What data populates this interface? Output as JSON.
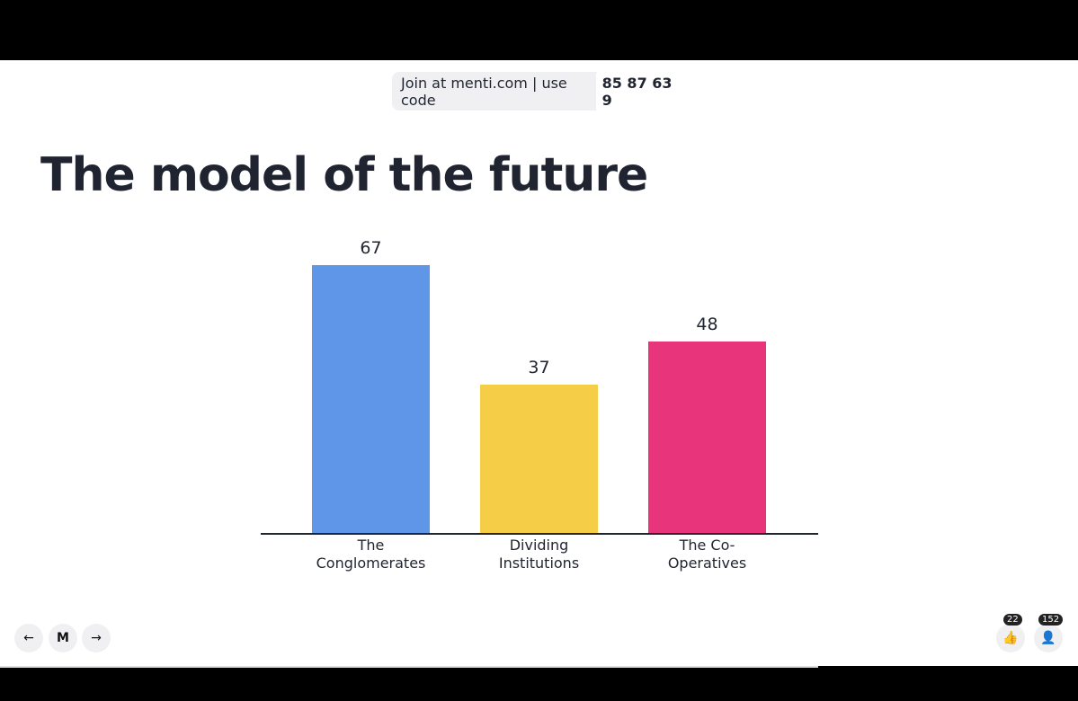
{
  "join": {
    "text": "Join at menti.com | use code",
    "code": "85 87 63 9"
  },
  "chart_data": {
    "type": "bar",
    "title": "The model of the future",
    "categories": [
      "The Conglomerates",
      "Dividing Institutions",
      "The Co-Operatives"
    ],
    "series": [
      {
        "colors": [
          "#6096e8",
          "#f6cd46",
          "#e8347a"
        ],
        "values": [
          67,
          37,
          48
        ]
      }
    ]
  },
  "reactions": {
    "likes": 22,
    "participants": 152
  }
}
